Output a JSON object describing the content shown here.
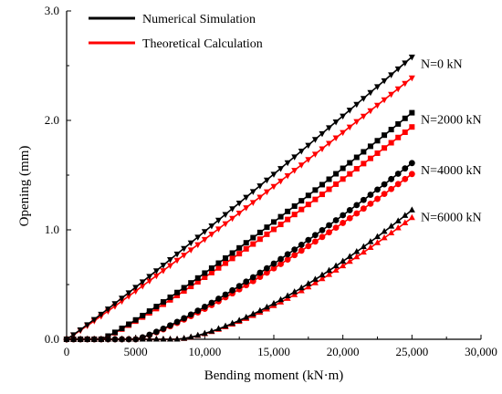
{
  "chart_data": {
    "type": "line",
    "xlabel": "Bending moment (kN·m)",
    "ylabel": "Opening (mm)",
    "xlim": [
      0,
      30000
    ],
    "ylim": [
      0,
      3.0
    ],
    "xticks": [
      0,
      5000,
      10000,
      15000,
      20000,
      25000,
      30000
    ],
    "xtick_labels": [
      "0",
      "5000",
      "10,000",
      "15,000",
      "20,000",
      "25,000",
      "30,000"
    ],
    "yticks": [
      0,
      1,
      2,
      3
    ],
    "ytick_labels": [
      "0.0",
      "1.0",
      "2.0",
      "3.0"
    ],
    "grid": false,
    "legend": {
      "placement": "top-left",
      "entries": [
        {
          "label": "Numerical Simulation",
          "color": "#000000"
        },
        {
          "label": "Theoretical Calculation",
          "color": "#ff0000"
        }
      ]
    },
    "curves": [
      {
        "annotation": "N=0 kN",
        "marker": "triangle-down",
        "start": 0,
        "numerical_end": 2.58,
        "theoretical_end": 2.39,
        "exponent": 1.05
      },
      {
        "annotation": "N=2000 kN",
        "marker": "square",
        "start": 2500,
        "numerical_end": 2.07,
        "theoretical_end": 1.94,
        "exponent": 1.12
      },
      {
        "annotation": "N=4000 kN",
        "marker": "circle",
        "start": 5000,
        "numerical_end": 1.61,
        "theoretical_end": 1.51,
        "exponent": 1.22
      },
      {
        "annotation": "N=6000 kN",
        "marker": "triangle-up",
        "start": 8000,
        "numerical_end": 1.18,
        "theoretical_end": 1.11,
        "exponent": 1.45
      }
    ],
    "x_end": 25000,
    "colors": {
      "numerical": "#000000",
      "theoretical": "#ff0000"
    }
  }
}
